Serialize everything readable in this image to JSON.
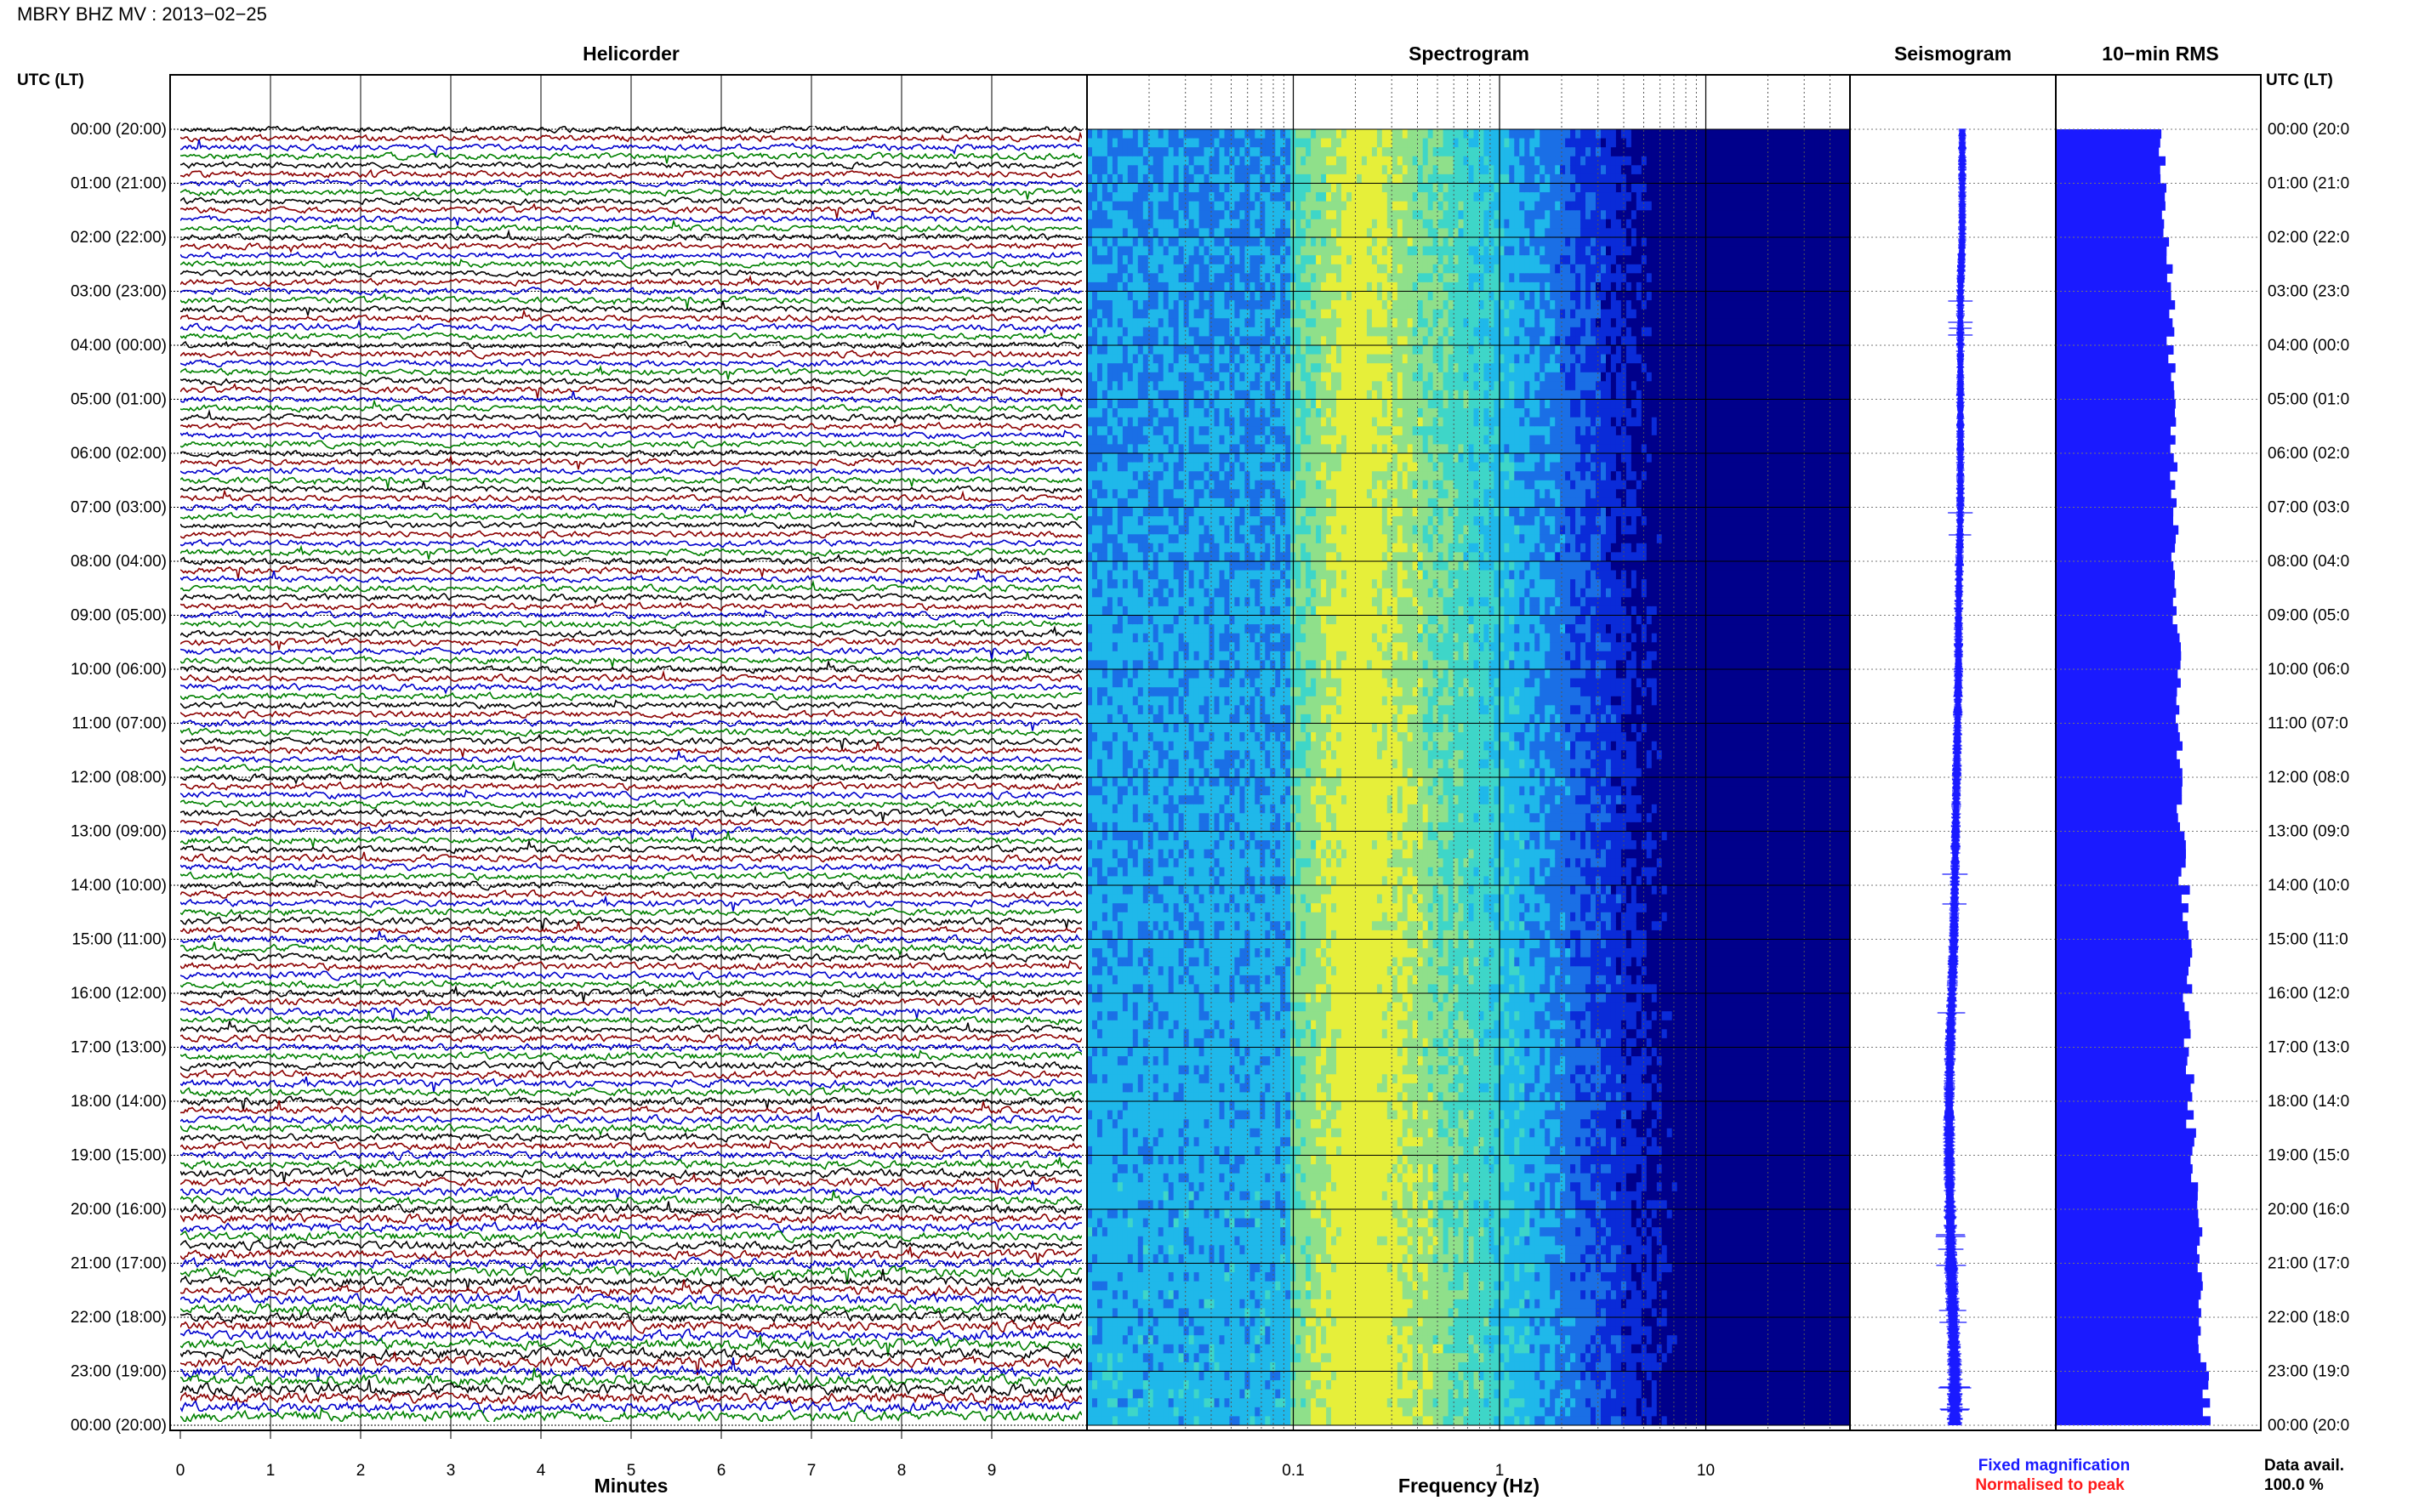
{
  "title": "MBRY BHZ MV : 2013−02−25",
  "time_axis_label_left": "UTC (LT)",
  "time_axis_label_right": "UTC (LT)",
  "panels": {
    "helicorder": "Helicorder",
    "spectrogram": "Spectrogram",
    "seismogram": "Seismogram",
    "rms": "10−min RMS"
  },
  "x_axis": {
    "helicorder_label": "Minutes",
    "spectrogram_label": "Frequency (Hz)"
  },
  "legend": {
    "fixed": "Fixed magnification",
    "normalised": "Normalised to peak",
    "fixed_color": "#1a1aff",
    "normalised_color": "#ff1a1a"
  },
  "data_avail": {
    "label": "Data avail.",
    "value": "100.0 %"
  },
  "colors": {
    "trace_cycle": [
      "#000000",
      "#8b0000",
      "#0000cc",
      "#008000"
    ],
    "seismogram": "#1a1aff",
    "rms": "#1a1aff"
  },
  "chart_data": [
    {
      "type": "line",
      "name": "helicorder",
      "x_unit": "Minutes",
      "xlim": [
        0,
        10
      ],
      "xticks": [
        "0",
        "1",
        "2",
        "3",
        "4",
        "5",
        "6",
        "7",
        "8",
        "9"
      ],
      "rows_per_hour": 6,
      "hours": 24,
      "y_tick_labels": [
        "00:00 (20:00)",
        "01:00 (21:00)",
        "02:00 (22:00)",
        "03:00 (23:00)",
        "04:00 (00:00)",
        "05:00 (01:00)",
        "06:00 (02:00)",
        "07:00 (03:00)",
        "08:00 (04:00)",
        "09:00 (05:00)",
        "10:00 (06:00)",
        "11:00 (07:00)",
        "12:00 (08:00)",
        "13:00 (09:00)",
        "14:00 (10:00)",
        "15:00 (11:00)",
        "16:00 (12:00)",
        "17:00 (13:00)",
        "18:00 (14:00)",
        "19:00 (15:00)",
        "20:00 (16:00)",
        "21:00 (17:00)",
        "22:00 (18:00)",
        "23:00 (19:00)",
        "00:00 (20:00)"
      ],
      "y_tick_labels_right": [
        "00:00 (20:0",
        "01:00 (21:0",
        "02:00 (22:0",
        "03:00 (23:0",
        "04:00 (00:0",
        "05:00 (01:0",
        "06:00 (02:0",
        "07:00 (03:0",
        "08:00 (04:0",
        "09:00 (05:0",
        "10:00 (06:0",
        "11:00 (07:0",
        "12:00 (08:0",
        "13:00 (09:0",
        "14:00 (10:0",
        "15:00 (11:0",
        "16:00 (12:0",
        "17:00 (13:0",
        "18:00 (14:0",
        "19:00 (15:0",
        "20:00 (16:0",
        "21:00 (17:0",
        "22:00 (18:0",
        "23:00 (19:0",
        "00:00 (20:0"
      ],
      "relative_amplitude_by_hour": [
        1.0,
        1.0,
        1.0,
        1.0,
        1.0,
        1.0,
        1.0,
        1.0,
        1.05,
        1.05,
        1.05,
        1.05,
        1.1,
        1.1,
        1.1,
        1.15,
        1.15,
        1.2,
        1.2,
        1.3,
        1.4,
        1.5,
        1.6,
        1.7
      ]
    },
    {
      "type": "heatmap",
      "name": "spectrogram",
      "x_scale": "log",
      "x_unit": "Frequency (Hz)",
      "xlim": [
        0.01,
        50
      ],
      "xticks": [
        0.1,
        1,
        10
      ],
      "xtick_labels": [
        "0.1",
        "1",
        "10"
      ],
      "colormap": [
        "#00008b",
        "#0a2bd8",
        "#1a6fe6",
        "#1fb8ea",
        "#3ed6c8",
        "#8fe08a",
        "#e6ef3a"
      ],
      "peak_frequency_hz": 0.2
    },
    {
      "type": "line",
      "name": "seismogram",
      "note_values": "trace centre drift over 24 h, relative units",
      "drift_by_hour": [
        0.5,
        0.5,
        0.5,
        0.4,
        0.4,
        0.4,
        0.4,
        0.4,
        0.35,
        0.3,
        0.3,
        0.25,
        0.2,
        0.15,
        0.1,
        0.05,
        -0.05,
        -0.15,
        -0.2,
        -0.2,
        -0.15,
        -0.1,
        0.0,
        0.1
      ],
      "amplitude_by_hour": [
        0.35,
        0.35,
        0.35,
        0.35,
        0.35,
        0.35,
        0.35,
        0.35,
        0.38,
        0.38,
        0.4,
        0.4,
        0.4,
        0.42,
        0.42,
        0.45,
        0.45,
        0.48,
        0.5,
        0.5,
        0.55,
        0.6,
        0.6,
        0.65
      ]
    },
    {
      "type": "bar",
      "name": "10-min RMS",
      "orientation": "horizontal",
      "bins_per_hour": 6,
      "rms_by_hour": [
        0.52,
        0.53,
        0.55,
        0.56,
        0.56,
        0.57,
        0.57,
        0.58,
        0.58,
        0.59,
        0.6,
        0.6,
        0.61,
        0.62,
        0.63,
        0.64,
        0.64,
        0.65,
        0.66,
        0.67,
        0.69,
        0.71,
        0.72,
        0.74
      ],
      "xlim": [
        0,
        1
      ]
    }
  ]
}
